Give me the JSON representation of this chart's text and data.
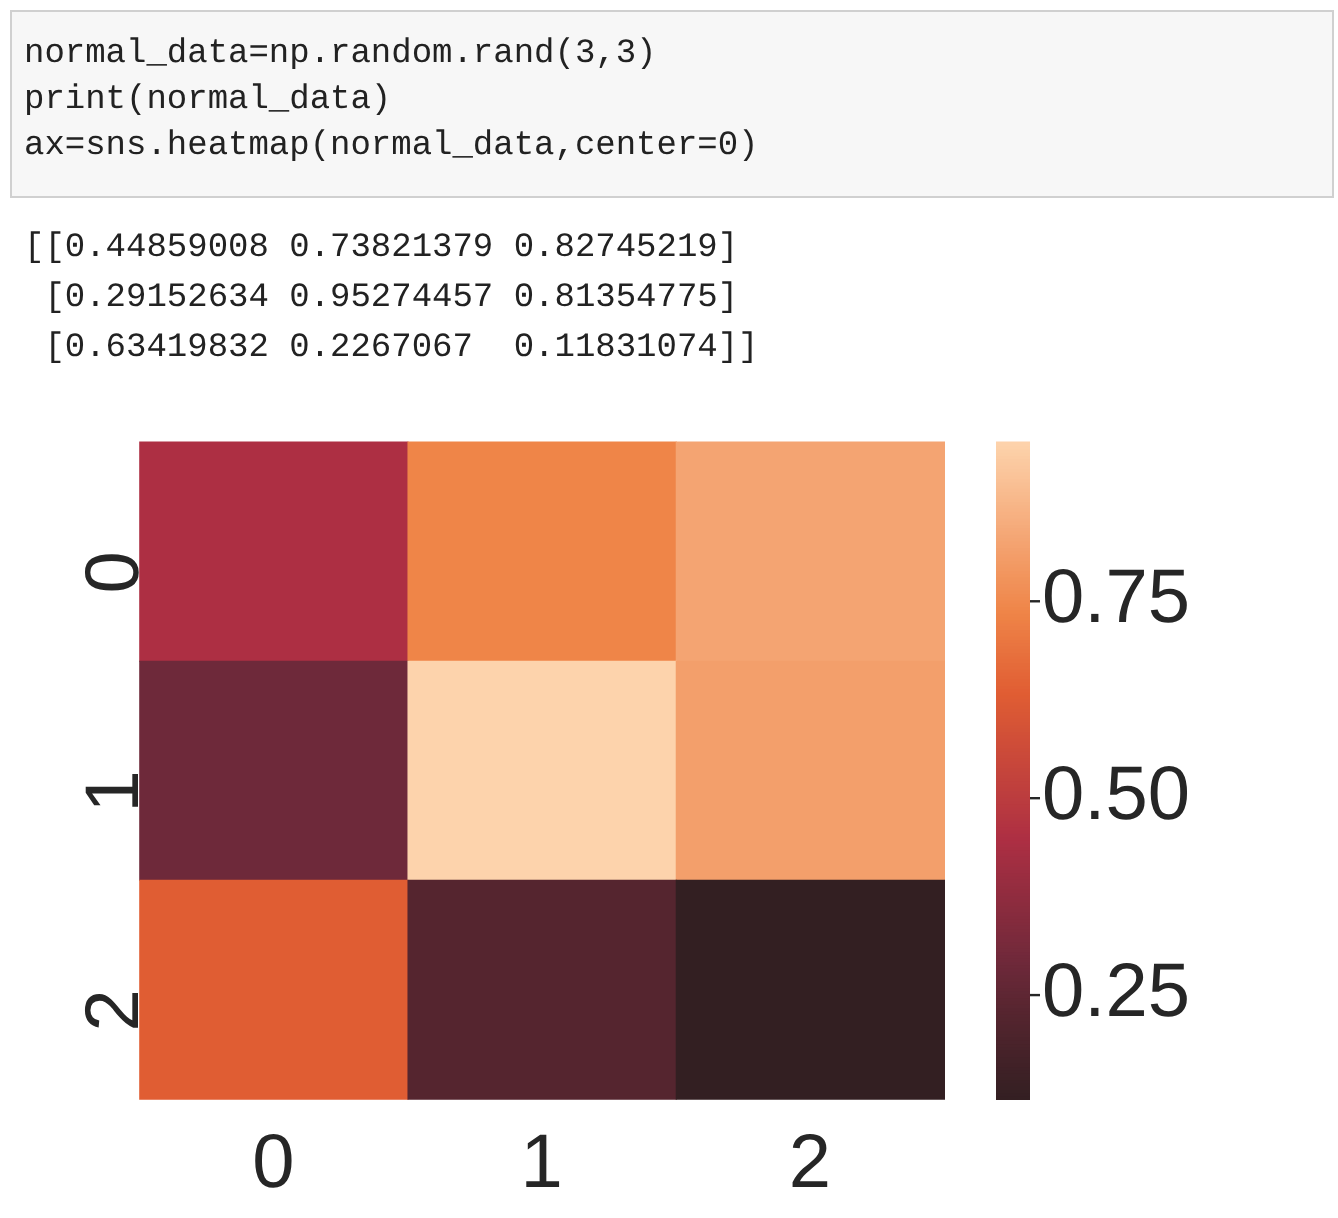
{
  "chart_data": {
    "type": "heatmap",
    "categories": [
      "0",
      "1",
      "2"
    ],
    "y_categories": [
      "0",
      "1",
      "2"
    ],
    "cells": [
      [
        0.44859008,
        0.73821379,
        0.82745219
      ],
      [
        0.29152634,
        0.95274457,
        0.81354775
      ],
      [
        0.63419832,
        0.2267067,
        0.11831074
      ]
    ],
    "clim": [
      0.11831074,
      0.95274457
    ],
    "cticks": [
      0.25,
      {
        "value": 0.5,
        "label": "0.50"
      },
      0.75
    ],
    "annotations": [
      "normal_data=np.random.rand(3,3)",
      "print(normal_data)",
      "ax=sns.heatmap(normal_data,center=0)",
      "[[0.44859008 0.73821379 0.82745219]",
      " [0.29152634 0.95274457 0.81354775]",
      " [0.63419832 0.2267067  0.11831074]]"
    ]
  }
}
